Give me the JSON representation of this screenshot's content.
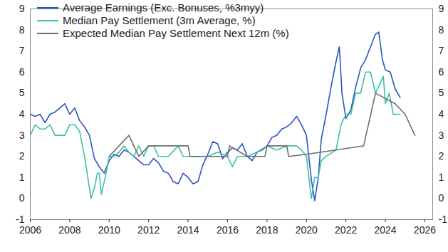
{
  "chart_data": {
    "type": "line",
    "xlim": [
      2006,
      2026.4
    ],
    "xticks": [
      2006,
      2008,
      2010,
      2012,
      2014,
      2016,
      2018,
      2020,
      2022,
      2024,
      2026
    ],
    "ylim": [
      -1,
      9
    ],
    "yticks": [
      -1,
      0,
      1,
      2,
      3,
      4,
      5,
      6,
      7,
      8,
      9
    ],
    "y2lim": [
      -1,
      9
    ],
    "y2ticks": [
      -1,
      0,
      1,
      2,
      3,
      4,
      5,
      6,
      7,
      8,
      9
    ],
    "grid": false,
    "legend": "top-left",
    "series": [
      {
        "name": "Average Earnings (Exc. Bonuses, %3myy)",
        "color": "#2a55c0",
        "x": [
          2006.0,
          2006.25,
          2006.5,
          2006.75,
          2007.0,
          2007.25,
          2007.5,
          2007.75,
          2008.0,
          2008.25,
          2008.5,
          2008.75,
          2009.0,
          2009.25,
          2009.5,
          2009.75,
          2010.0,
          2010.25,
          2010.5,
          2010.75,
          2011.0,
          2011.25,
          2011.5,
          2011.75,
          2012.0,
          2012.25,
          2012.5,
          2012.75,
          2013.0,
          2013.25,
          2013.5,
          2013.75,
          2014.0,
          2014.25,
          2014.5,
          2014.75,
          2015.0,
          2015.25,
          2015.5,
          2015.75,
          2016.0,
          2016.25,
          2016.5,
          2016.75,
          2017.0,
          2017.25,
          2017.5,
          2017.75,
          2018.0,
          2018.25,
          2018.5,
          2018.75,
          2019.0,
          2019.25,
          2019.5,
          2019.75,
          2020.0,
          2020.25,
          2020.42,
          2020.6,
          2020.75,
          2021.0,
          2021.25,
          2021.5,
          2021.67,
          2021.8,
          2022.0,
          2022.25,
          2022.5,
          2022.75,
          2023.0,
          2023.25,
          2023.5,
          2023.67,
          2023.85,
          2024.0,
          2024.25,
          2024.5,
          2024.75
        ],
        "values": [
          4.0,
          3.9,
          4.0,
          3.6,
          4.0,
          4.1,
          4.3,
          4.5,
          4.0,
          4.3,
          3.7,
          3.4,
          3.0,
          1.9,
          1.5,
          1.2,
          1.8,
          2.1,
          2.0,
          2.3,
          2.2,
          2.0,
          1.8,
          1.6,
          1.6,
          1.9,
          1.7,
          1.3,
          1.2,
          0.8,
          0.7,
          1.2,
          1.0,
          0.7,
          0.8,
          1.6,
          2.1,
          2.7,
          2.6,
          1.9,
          2.2,
          2.4,
          2.3,
          2.6,
          2.0,
          1.8,
          2.2,
          2.3,
          2.5,
          2.9,
          3.0,
          3.3,
          3.4,
          3.6,
          3.9,
          3.5,
          3.0,
          0.9,
          -0.1,
          1.0,
          2.8,
          4.0,
          5.3,
          6.5,
          7.2,
          5.0,
          3.8,
          4.2,
          5.3,
          6.2,
          6.6,
          7.2,
          7.8,
          7.9,
          6.6,
          6.1,
          6.0,
          5.2,
          4.8
        ]
      },
      {
        "name": "Median Pay Settlement (3m Average, %)",
        "color": "#3dbfaa",
        "x": [
          2006.0,
          2006.25,
          2006.5,
          2006.75,
          2007.0,
          2007.25,
          2007.5,
          2007.75,
          2008.0,
          2008.25,
          2008.5,
          2008.75,
          2009.0,
          2009.08,
          2009.25,
          2009.4,
          2009.5,
          2009.6,
          2009.8,
          2010.0,
          2010.25,
          2010.5,
          2010.75,
          2011.0,
          2011.25,
          2011.5,
          2011.75,
          2012.0,
          2012.25,
          2012.5,
          2012.75,
          2013.0,
          2013.5,
          2013.75,
          2014.0,
          2014.5,
          2015.0,
          2015.5,
          2016.0,
          2016.25,
          2016.5,
          2017.0,
          2017.5,
          2018.0,
          2018.5,
          2019.0,
          2019.5,
          2019.75,
          2020.0,
          2020.25,
          2020.42,
          2020.6,
          2020.75,
          2021.0,
          2021.5,
          2021.75,
          2022.0,
          2022.25,
          2022.5,
          2022.75,
          2023.0,
          2023.25,
          2023.5,
          2023.75,
          2023.9,
          2024.0,
          2024.2,
          2024.4,
          2024.75
        ],
        "values": [
          3.0,
          3.5,
          3.3,
          3.3,
          3.5,
          3.0,
          3.0,
          3.0,
          3.5,
          3.5,
          3.2,
          2.0,
          0.5,
          0.0,
          0.5,
          1.2,
          1.2,
          0.2,
          1.0,
          2.0,
          2.0,
          2.2,
          2.5,
          2.2,
          2.0,
          2.5,
          2.0,
          2.5,
          2.5,
          2.0,
          2.0,
          2.0,
          2.5,
          2.0,
          2.0,
          2.0,
          2.0,
          2.2,
          2.0,
          1.5,
          2.0,
          2.0,
          2.2,
          2.5,
          2.3,
          2.5,
          2.5,
          2.3,
          2.0,
          0.0,
          1.0,
          1.0,
          1.8,
          2.0,
          2.3,
          3.5,
          4.0,
          4.0,
          5.0,
          5.0,
          6.0,
          6.0,
          5.0,
          5.5,
          5.8,
          4.5,
          5.0,
          4.0,
          4.0
        ]
      },
      {
        "name": "Expected Median Pay Settlement Next 12m (%)",
        "color": "#6d6d6d",
        "x": [
          2010.0,
          2011.0,
          2011.5,
          2012.0,
          2014.0,
          2014.1,
          2016.0,
          2016.1,
          2017.0,
          2017.9,
          2018.0,
          2019.0,
          2019.1,
          2020.0,
          2022.9,
          2023.5,
          2024.5,
          2025.0,
          2025.5
        ],
        "values": [
          2.0,
          3.0,
          2.0,
          2.5,
          2.5,
          2.0,
          2.0,
          2.5,
          2.0,
          2.0,
          2.5,
          2.5,
          2.0,
          2.1,
          2.5,
          5.0,
          4.5,
          4.0,
          3.0
        ]
      }
    ]
  }
}
